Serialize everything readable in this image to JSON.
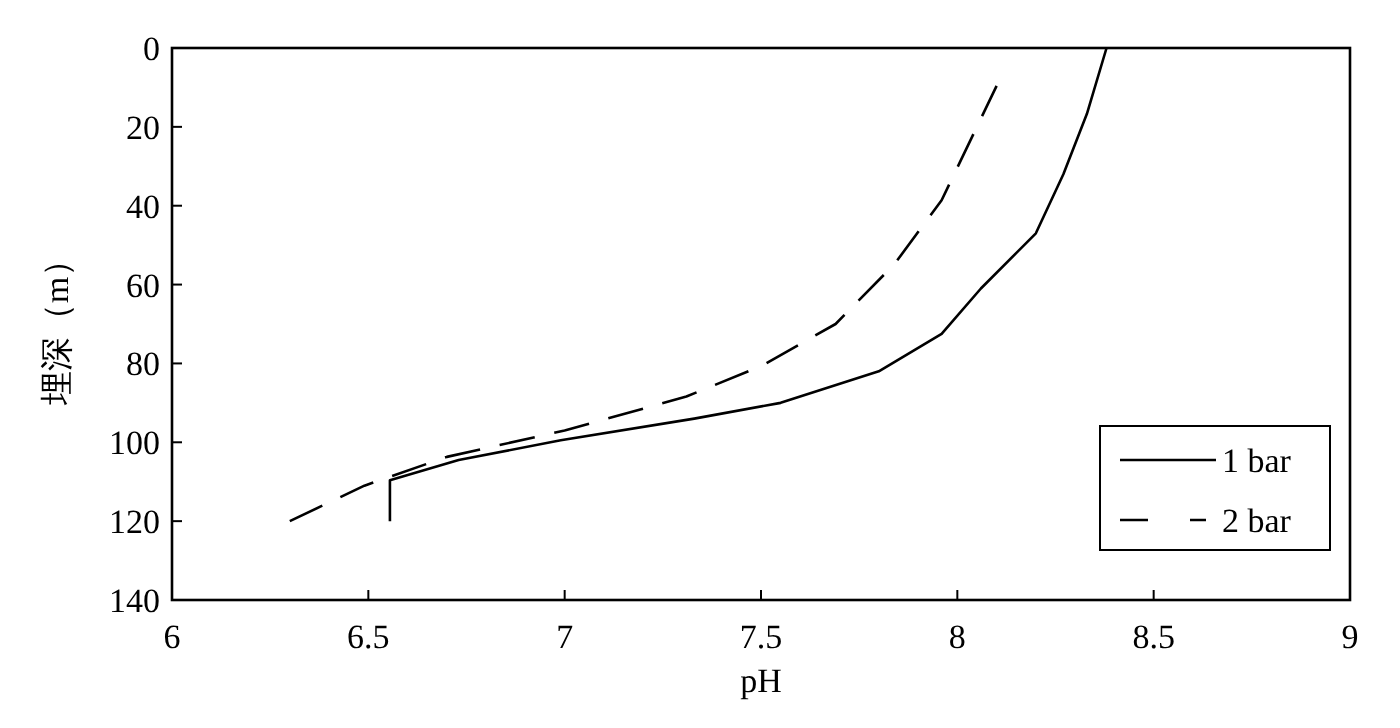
{
  "chart_data": {
    "type": "line",
    "xlabel": "pH",
    "ylabel": "埋深（m）",
    "xlim": [
      6,
      9
    ],
    "ylim": [
      140,
      0
    ],
    "xticks": [
      6,
      6.5,
      7,
      7.5,
      8,
      8.5,
      9
    ],
    "yticks": [
      0,
      20,
      40,
      60,
      80,
      100,
      120,
      140
    ],
    "grid": false,
    "legend": "bottom right",
    "series": [
      {
        "name": "1 bar",
        "color": "#000000",
        "line_style": "solid",
        "x": [
          6.555,
          6.555,
          6.73,
          6.99,
          7.33,
          7.55,
          7.8,
          7.96,
          8.06,
          8.2,
          8.27,
          8.33,
          8.38
        ],
        "values": [
          120,
          109.6,
          104.5,
          99.5,
          94,
          90,
          82,
          72.5,
          61,
          47,
          32,
          16.7,
          0
        ]
      },
      {
        "name": "2 bar",
        "color": "#000000",
        "line_style": "dashed",
        "x": [
          6.3,
          6.49,
          6.7,
          7.0,
          7.31,
          7.5,
          7.69,
          7.84,
          7.96,
          8.1
        ],
        "values": [
          120,
          111,
          103.7,
          97,
          88.4,
          80.7,
          70,
          54.8,
          38.6,
          9.6
        ]
      }
    ]
  }
}
